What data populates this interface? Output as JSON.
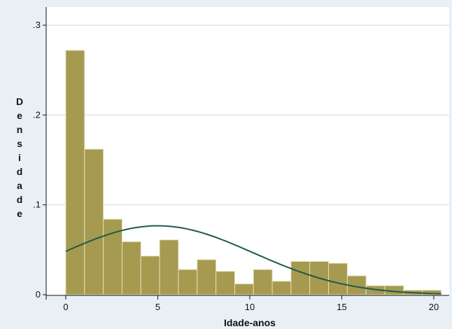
{
  "chart_data": {
    "type": "bar",
    "xlabel": "Idade-anos",
    "ylabel": "Densidade",
    "xlim": [
      -1,
      20.7
    ],
    "ylim": [
      0,
      0.3
    ],
    "grid": true,
    "x_ticks": [
      0,
      5,
      10,
      15,
      20
    ],
    "y_ticks": [
      {
        "value": 0,
        "label": "0"
      },
      {
        "value": 0.1,
        "label": ".1"
      },
      {
        "value": 0.2,
        "label": ".2"
      },
      {
        "value": 0.3,
        "label": ".3"
      }
    ],
    "bin_width": 1.02,
    "bin_start": 0,
    "values": [
      0.272,
      0.162,
      0.084,
      0.059,
      0.043,
      0.061,
      0.028,
      0.039,
      0.026,
      0.012,
      0.028,
      0.015,
      0.037,
      0.037,
      0.035,
      0.021,
      0.01,
      0.01,
      0.005,
      0.005
    ],
    "density_curve": {
      "type": "normal",
      "mean": 5.0,
      "sd": 5.2,
      "x_range": [
        0,
        20.4
      ]
    },
    "colors": {
      "bar_fill": "#a59a4f",
      "bar_stroke": "#e4dfb9",
      "curve": "#1e5a4c",
      "plot_bg": "#ffffff",
      "outer_bg": "#e8f0f6",
      "grid": "#d9e6ee"
    }
  }
}
